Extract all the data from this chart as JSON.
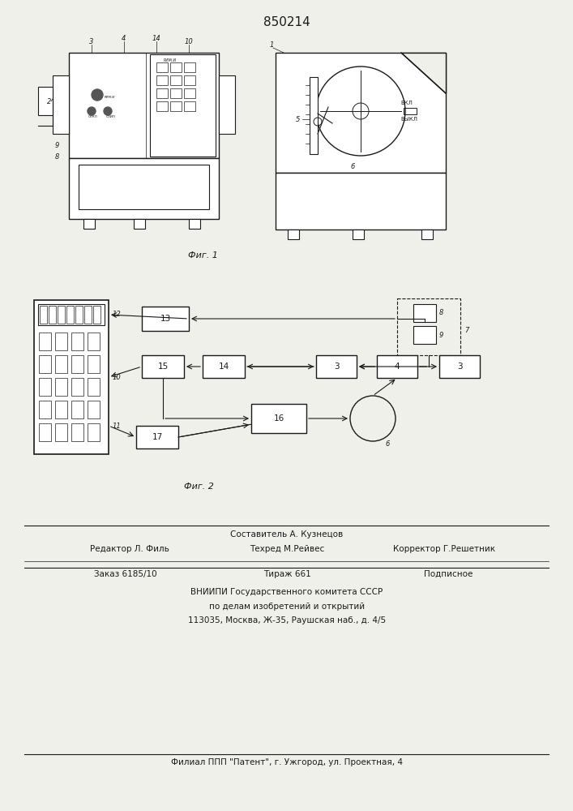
{
  "title": "850214",
  "title_fontsize": 10,
  "bg_color": "#f0f0eb",
  "fig1_caption": "Фиг. 1",
  "fig2_caption": "Фиг. 2",
  "footer_line0": "Составитель А. Кузнецов",
  "footer_line1a": "Редактор Л. Филь",
  "footer_line1b": "Техред М.Рейвес",
  "footer_line1c": "Корректор Г.Решетник",
  "footer_line2a": "Заказ 6185/10",
  "footer_line2b": "Тираж 661",
  "footer_line2c": "Подписное",
  "footer_line3": "ВНИИПИ Государственного комитета СССР",
  "footer_line4": "по делам изобретений и открытий",
  "footer_line5": "113035, Москва, Ж-35, Раушская наб., д. 4/5",
  "footer_line6": "Филиал ППП \"Патент\", г. Ужгород, ул. Проектная, 4",
  "line_color": "#1a1a1a",
  "fill_color": "#ffffff"
}
